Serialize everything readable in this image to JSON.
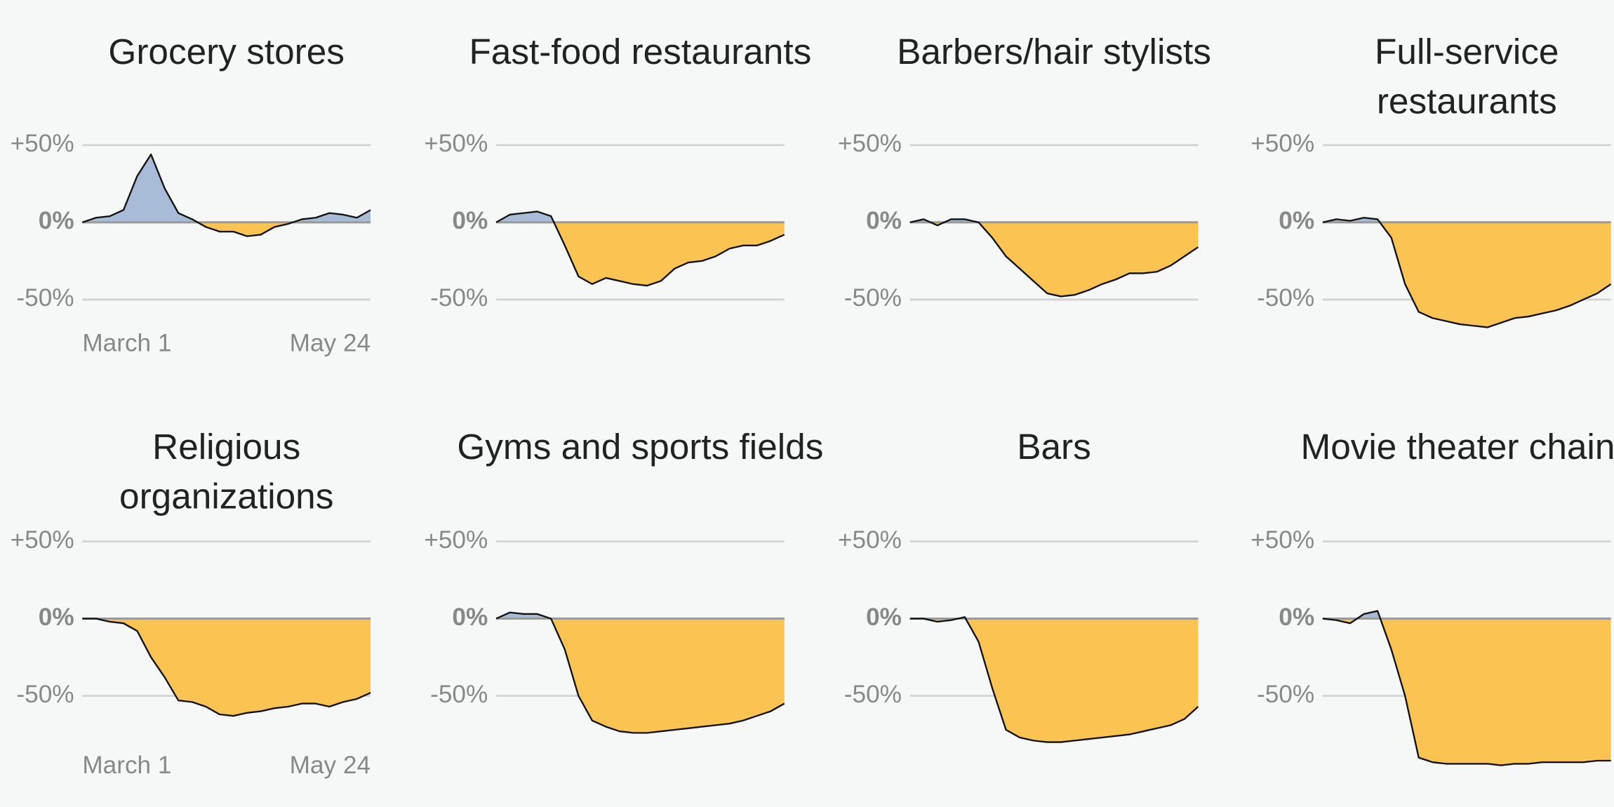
{
  "chart_data": [
    {
      "type": "area",
      "title": "Grocery stores",
      "categories": [
        "March 1",
        null,
        null,
        null,
        null,
        null,
        null,
        null,
        null,
        null,
        null,
        null,
        null,
        null,
        null,
        null,
        null,
        null,
        null,
        null,
        null,
        "May 24"
      ],
      "values": [
        0,
        3,
        4,
        8,
        30,
        44,
        22,
        6,
        2,
        -3,
        -6,
        -6,
        -9,
        -8,
        -3,
        -1,
        2,
        3,
        6,
        5,
        3,
        8
      ],
      "ylim": [
        -100,
        55
      ],
      "yticks": [
        {
          "value": 50,
          "label": "+50%"
        },
        {
          "value": 0,
          "label": "0%"
        },
        {
          "value": -50,
          "label": "-50%"
        }
      ],
      "color_positive": "#a8bcd8",
      "color_negative": "#fbc452"
    },
    {
      "type": "area",
      "title": "Fast-food restaurants",
      "categories": [
        null,
        null,
        null,
        null,
        null,
        null,
        null,
        null,
        null,
        null,
        null,
        null,
        null,
        null,
        null,
        null,
        null,
        null,
        null,
        null,
        null,
        null
      ],
      "values": [
        0,
        5,
        6,
        7,
        4,
        -15,
        -35,
        -40,
        -36,
        -38,
        -40,
        -41,
        -38,
        -30,
        -26,
        -25,
        -22,
        -17,
        -15,
        -15,
        -12,
        -8
      ],
      "ylim": [
        -100,
        55
      ],
      "yticks": [
        {
          "value": 50,
          "label": "+50%"
        },
        {
          "value": 0,
          "label": "0%"
        },
        {
          "value": -50,
          "label": "-50%"
        }
      ],
      "color_positive": "#a8bcd8",
      "color_negative": "#fbc452"
    },
    {
      "type": "area",
      "title": "Barbers/hair stylists",
      "categories": [
        null,
        null,
        null,
        null,
        null,
        null,
        null,
        null,
        null,
        null,
        null,
        null,
        null,
        null,
        null,
        null,
        null,
        null,
        null,
        null,
        null,
        null
      ],
      "values": [
        0,
        2,
        -2,
        2,
        2,
        0,
        -10,
        -22,
        -30,
        -38,
        -46,
        -48,
        -47,
        -44,
        -40,
        -37,
        -33,
        -33,
        -32,
        -28,
        -22,
        -16
      ],
      "ylim": [
        -100,
        55
      ],
      "yticks": [
        {
          "value": 50,
          "label": "+50%"
        },
        {
          "value": 0,
          "label": "0%"
        },
        {
          "value": -50,
          "label": "-50%"
        }
      ],
      "color_positive": "#a8bcd8",
      "color_negative": "#fbc452"
    },
    {
      "type": "area",
      "title": "Full-service restaurants",
      "categories": [
        null,
        null,
        null,
        null,
        null,
        null,
        null,
        null,
        null,
        null,
        null,
        null,
        null,
        null,
        null,
        null,
        null,
        null,
        null,
        null,
        null,
        null
      ],
      "values": [
        0,
        2,
        1,
        3,
        2,
        -10,
        -40,
        -58,
        -62,
        -64,
        -66,
        -67,
        -68,
        -65,
        -62,
        -61,
        -59,
        -57,
        -54,
        -50,
        -46,
        -40
      ],
      "ylim": [
        -100,
        55
      ],
      "yticks": [
        {
          "value": 50,
          "label": "+50%"
        },
        {
          "value": 0,
          "label": "0%"
        },
        {
          "value": -50,
          "label": "-50%"
        }
      ],
      "color_positive": "#a8bcd8",
      "color_negative": "#fbc452"
    },
    {
      "type": "area",
      "title": "Religious organizations",
      "categories": [
        "March 1",
        null,
        null,
        null,
        null,
        null,
        null,
        null,
        null,
        null,
        null,
        null,
        null,
        null,
        null,
        null,
        null,
        null,
        null,
        null,
        null,
        "May 24"
      ],
      "values": [
        0,
        0,
        -2,
        -3,
        -8,
        -25,
        -38,
        -53,
        -54,
        -57,
        -62,
        -63,
        -61,
        -60,
        -58,
        -57,
        -55,
        -55,
        -57,
        -54,
        -52,
        -48
      ],
      "ylim": [
        -100,
        55
      ],
      "yticks": [
        {
          "value": 50,
          "label": "+50%"
        },
        {
          "value": 0,
          "label": "0%"
        },
        {
          "value": -50,
          "label": "-50%"
        }
      ],
      "color_positive": "#a8bcd8",
      "color_negative": "#fbc452"
    },
    {
      "type": "area",
      "title": "Gyms and sports fields",
      "categories": [
        null,
        null,
        null,
        null,
        null,
        null,
        null,
        null,
        null,
        null,
        null,
        null,
        null,
        null,
        null,
        null,
        null,
        null,
        null,
        null,
        null,
        null
      ],
      "values": [
        0,
        4,
        3,
        3,
        0,
        -20,
        -50,
        -66,
        -70,
        -73,
        -74,
        -74,
        -73,
        -72,
        -71,
        -70,
        -69,
        -68,
        -66,
        -63,
        -60,
        -55
      ],
      "ylim": [
        -100,
        55
      ],
      "yticks": [
        {
          "value": 50,
          "label": "+50%"
        },
        {
          "value": 0,
          "label": "0%"
        },
        {
          "value": -50,
          "label": "-50%"
        }
      ],
      "color_positive": "#a8bcd8",
      "color_negative": "#fbc452"
    },
    {
      "type": "area",
      "title": "Bars",
      "categories": [
        null,
        null,
        null,
        null,
        null,
        null,
        null,
        null,
        null,
        null,
        null,
        null,
        null,
        null,
        null,
        null,
        null,
        null,
        null,
        null,
        null,
        null
      ],
      "values": [
        0,
        0,
        -2,
        -1,
        1,
        -15,
        -45,
        -72,
        -77,
        -79,
        -80,
        -80,
        -79,
        -78,
        -77,
        -76,
        -75,
        -73,
        -71,
        -69,
        -65,
        -57
      ],
      "ylim": [
        -100,
        55
      ],
      "yticks": [
        {
          "value": 50,
          "label": "+50%"
        },
        {
          "value": 0,
          "label": "0%"
        },
        {
          "value": -50,
          "label": "-50%"
        }
      ],
      "color_positive": "#a8bcd8",
      "color_negative": "#fbc452"
    },
    {
      "type": "area",
      "title": "Movie theater chains",
      "categories": [
        null,
        null,
        null,
        null,
        null,
        null,
        null,
        null,
        null,
        null,
        null,
        null,
        null,
        null,
        null,
        null,
        null,
        null,
        null,
        null,
        null,
        null
      ],
      "values": [
        0,
        -1,
        -3,
        3,
        5,
        -20,
        -50,
        -90,
        -93,
        -94,
        -94,
        -94,
        -94,
        -95,
        -94,
        -94,
        -93,
        -93,
        -93,
        -93,
        -92,
        -92
      ],
      "ylim": [
        -100,
        55
      ],
      "yticks": [
        {
          "value": 50,
          "label": "+50%"
        },
        {
          "value": 0,
          "label": "0%"
        },
        {
          "value": -50,
          "label": "-50%"
        }
      ],
      "color_positive": "#a8bcd8",
      "color_negative": "#fbc452"
    }
  ]
}
